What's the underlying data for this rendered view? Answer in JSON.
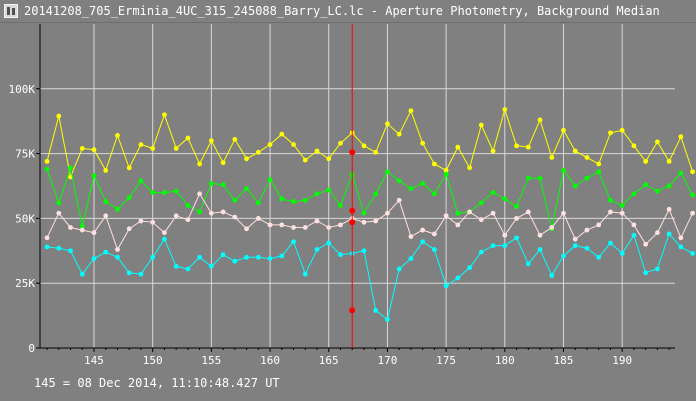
{
  "window": {
    "title": "20141208_705_Erminia_4UC_315_245088_Barry_LC.lc - Aperture Photometry, Background Median",
    "icon": "lightcurve-app-icon"
  },
  "status_text": "145 = 08 Dec 2014, 11:10:48.427 UT",
  "colors": {
    "background": "#808080",
    "grid": "#d8d8d8",
    "axis": "#000000",
    "cursor": "#ff0000",
    "series_yellow": "#ffff00",
    "series_green": "#00ff00",
    "series_pink": "#ffe0e0",
    "series_cyan": "#00ffff"
  },
  "chart_data": {
    "type": "line",
    "x_start": 141,
    "xlim": [
      140.4,
      194.5
    ],
    "ylim": [
      0,
      125000
    ],
    "x_ticks": [
      145,
      150,
      155,
      160,
      165,
      170,
      175,
      180,
      185,
      190
    ],
    "y_ticks": [
      0,
      25000,
      50000,
      75000,
      100000
    ],
    "y_tick_labels": [
      "0",
      "25K",
      "50K",
      "75K",
      "100K"
    ],
    "grid": true,
    "cursor_x": 167,
    "cursor_values": [
      75500,
      53000,
      48500,
      14500
    ],
    "series": [
      {
        "color": "yellow",
        "values": [
          72000,
          89500,
          66000,
          77000,
          76500,
          68500,
          82000,
          69500,
          78500,
          77000,
          90000,
          77000,
          81000,
          71000,
          80000,
          71500,
          80500,
          73000,
          75500,
          78500,
          82500,
          78500,
          72500,
          76000,
          73000,
          79000,
          83000,
          78000,
          75500,
          86500,
          82500,
          91500,
          79000,
          71000,
          68500,
          77500,
          69500,
          86000,
          76000,
          92000,
          78000,
          77500,
          88000,
          73500,
          84000,
          76000,
          73500,
          71000,
          83000,
          84000,
          78000,
          72000,
          79500,
          72000,
          81500,
          68000
        ]
      },
      {
        "color": "green",
        "values": [
          69000,
          56000,
          69500,
          47000,
          66500,
          56500,
          53500,
          58000,
          64500,
          60000,
          60000,
          60500,
          55000,
          52500,
          63500,
          63000,
          57000,
          61500,
          56000,
          65000,
          57500,
          56500,
          57000,
          59500,
          61000,
          55000,
          67000,
          52000,
          59500,
          68000,
          64500,
          61500,
          63500,
          59500,
          67000,
          52000,
          52500,
          56000,
          60000,
          57500,
          54500,
          65500,
          65500,
          46000,
          68500,
          62500,
          65500,
          68000,
          57000,
          55000,
          59500,
          63000,
          60500,
          62500,
          67500,
          59000
        ]
      },
      {
        "color": "pink",
        "values": [
          42500,
          52000,
          46500,
          45500,
          44500,
          51000,
          38000,
          46000,
          49000,
          48500,
          44500,
          51000,
          49500,
          59500,
          52000,
          52500,
          50500,
          46000,
          50000,
          47500,
          47500,
          46500,
          46500,
          49000,
          46500,
          47500,
          50000,
          48500,
          49000,
          52000,
          57000,
          43000,
          45500,
          44000,
          51000,
          47500,
          52500,
          49500,
          52000,
          43500,
          50000,
          52500,
          43500,
          46500,
          52000,
          42000,
          45500,
          47500,
          52500,
          52000,
          47500,
          40000,
          44500,
          53500,
          42500,
          52000
        ]
      },
      {
        "color": "cyan",
        "values": [
          39000,
          38500,
          37500,
          28500,
          34500,
          37000,
          35000,
          29000,
          28500,
          35000,
          42000,
          31500,
          30500,
          35000,
          31500,
          36000,
          33500,
          35000,
          35000,
          34500,
          35500,
          41000,
          28500,
          38000,
          40500,
          36000,
          36500,
          37500,
          14500,
          11000,
          30500,
          34500,
          41000,
          38000,
          24000,
          27000,
          31000,
          37000,
          39500,
          39500,
          42500,
          32500,
          38000,
          28000,
          35500,
          39500,
          38500,
          35000,
          40500,
          36500,
          43500,
          29000,
          30500,
          44000,
          39000,
          36500
        ]
      }
    ]
  }
}
